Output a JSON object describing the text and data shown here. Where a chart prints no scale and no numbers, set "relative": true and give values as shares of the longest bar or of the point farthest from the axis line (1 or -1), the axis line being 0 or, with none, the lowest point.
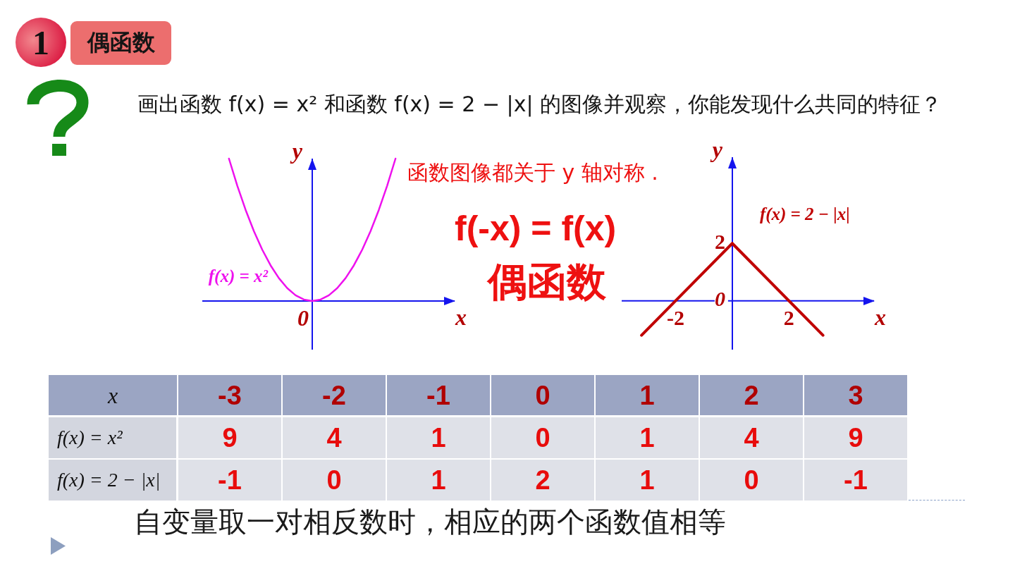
{
  "chart_data": [
    {
      "type": "line",
      "title": "偶函数",
      "subtitle": "画出函数 f(x) = x² 和函数 f(x) = 2 − |x| 的图像并观察，你能发现什么共同的特征？",
      "xlabel": "x",
      "ylabel": "y",
      "relative": true,
      "categories": [
        null,
        null,
        null,
        null,
        null,
        null,
        null,
        null,
        null,
        null,
        null,
        null,
        null,
        null,
        null,
        null,
        null,
        null,
        null,
        null,
        null
      ],
      "series": [
        {
          "name": "f(x) = x²",
          "color": "#ee11ee",
          "values": [
            1,
            0.81,
            0.64,
            0.49,
            0.36,
            0.25,
            0.16,
            0.09,
            0.04,
            0.01,
            0,
            0.01,
            0.04,
            0.09,
            0.16,
            0.25,
            0.36,
            0.49,
            0.64,
            0.81,
            1
          ]
        }
      ],
      "annotations": [
        "1",
        "0"
      ]
    },
    {
      "type": "line",
      "xlabel": "x",
      "ylabel": "y",
      "x": [
        -3.2,
        0,
        3.2
      ],
      "xlim": [
        -3.9,
        5
      ],
      "ylim": [
        -1.7,
        5
      ],
      "xticks": [
        -2,
        2
      ],
      "yticks": [
        0,
        2
      ],
      "series": [
        {
          "name": "f(x) = 2 − |x|",
          "color": "#c00000",
          "values": [
            -1.2,
            2,
            -1.2
          ]
        }
      ],
      "annotations": [
        "函数图像都关于 y 轴对称 .",
        "f(-x) = f(x)",
        "偶函数"
      ]
    },
    {
      "type": "heatmap",
      "xlabel": "x",
      "categories": [
        "-3",
        "-2",
        "-1",
        "0",
        "1",
        "2",
        "3"
      ],
      "y_categories": [
        "f(x) = x²",
        "f(x) = 2 − |x|"
      ],
      "cells": [
        [
          9,
          4,
          1,
          0,
          1,
          4,
          9
        ],
        [
          -1,
          0,
          1,
          2,
          1,
          0,
          -1
        ]
      ],
      "data_labels": true,
      "annotations": [
        "自变量取一对相反数时，相应的两个函数值相等"
      ]
    }
  ]
}
